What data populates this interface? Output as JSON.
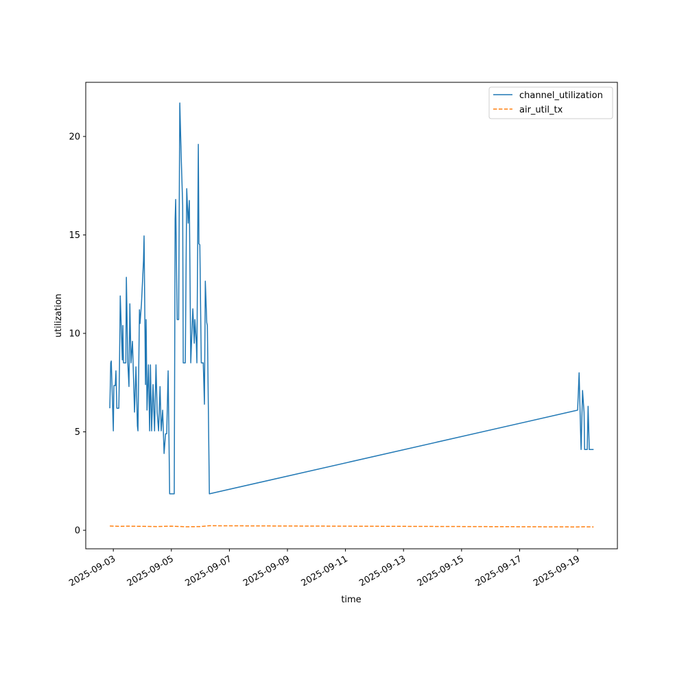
{
  "chart_data": {
    "type": "line",
    "title": "",
    "xlabel": "time",
    "ylabel": "utilization",
    "x_unit": "day of September 2025",
    "xlim": [
      2.05,
      20.37
    ],
    "ylim": [
      -0.94,
      22.75
    ],
    "xticks": [
      3,
      5,
      7,
      9,
      11,
      13,
      15,
      17,
      19
    ],
    "xtick_labels": [
      "2025-09-03",
      "2025-09-05",
      "2025-09-07",
      "2025-09-09",
      "2025-09-11",
      "2025-09-13",
      "2025-09-15",
      "2025-09-17",
      "2025-09-19"
    ],
    "yticks": [
      0,
      5,
      10,
      15,
      20
    ],
    "ytick_labels": [
      "0",
      "5",
      "10",
      "15",
      "20"
    ],
    "grid": false,
    "legend_position": "top-right",
    "series": [
      {
        "name": "channel_utilization",
        "color": "#1f77b4",
        "style": "solid",
        "points": [
          [
            2.88,
            6.2
          ],
          [
            2.91,
            8.5
          ],
          [
            2.93,
            8.6
          ],
          [
            3.0,
            5.05
          ],
          [
            3.02,
            7.35
          ],
          [
            3.07,
            7.35
          ],
          [
            3.09,
            8.1
          ],
          [
            3.12,
            6.2
          ],
          [
            3.19,
            6.2
          ],
          [
            3.21,
            8.1
          ],
          [
            3.24,
            11.9
          ],
          [
            3.31,
            8.65
          ],
          [
            3.33,
            10.4
          ],
          [
            3.35,
            8.5
          ],
          [
            3.43,
            8.5
          ],
          [
            3.45,
            12.85
          ],
          [
            3.5,
            8.5
          ],
          [
            3.54,
            7.3
          ],
          [
            3.57,
            11.5
          ],
          [
            3.61,
            8.5
          ],
          [
            3.66,
            9.6
          ],
          [
            3.73,
            6.0
          ],
          [
            3.78,
            8.3
          ],
          [
            3.83,
            5.3
          ],
          [
            3.85,
            5.05
          ],
          [
            3.9,
            11.2
          ],
          [
            3.92,
            10.5
          ],
          [
            3.97,
            11.5
          ],
          [
            4.04,
            13.7
          ],
          [
            4.06,
            14.95
          ],
          [
            4.11,
            7.4
          ],
          [
            4.13,
            10.7
          ],
          [
            4.16,
            6.1
          ],
          [
            4.21,
            8.4
          ],
          [
            4.25,
            5.05
          ],
          [
            4.28,
            8.4
          ],
          [
            4.32,
            5.05
          ],
          [
            4.37,
            7.4
          ],
          [
            4.42,
            5.05
          ],
          [
            4.47,
            8.4
          ],
          [
            4.51,
            6.0
          ],
          [
            4.56,
            5.05
          ],
          [
            4.61,
            7.3
          ],
          [
            4.65,
            5.05
          ],
          [
            4.7,
            6.1
          ],
          [
            4.75,
            3.9
          ],
          [
            4.8,
            4.9
          ],
          [
            4.84,
            4.9
          ],
          [
            4.89,
            8.1
          ],
          [
            4.94,
            1.85
          ],
          [
            5.1,
            1.85
          ],
          [
            5.13,
            15.8
          ],
          [
            5.15,
            16.8
          ],
          [
            5.2,
            10.7
          ],
          [
            5.25,
            10.7
          ],
          [
            5.29,
            21.7
          ],
          [
            5.34,
            18.9
          ],
          [
            5.39,
            16.5
          ],
          [
            5.41,
            8.5
          ],
          [
            5.48,
            8.5
          ],
          [
            5.53,
            17.35
          ],
          [
            5.58,
            15.6
          ],
          [
            5.62,
            16.75
          ],
          [
            5.67,
            8.5
          ],
          [
            5.74,
            11.25
          ],
          [
            5.77,
            10.2
          ],
          [
            5.79,
            9.5
          ],
          [
            5.81,
            10.7
          ],
          [
            5.86,
            9.5
          ],
          [
            5.88,
            8.5
          ],
          [
            5.93,
            19.6
          ],
          [
            5.95,
            14.55
          ],
          [
            5.98,
            14.5
          ],
          [
            6.03,
            8.5
          ],
          [
            6.1,
            8.5
          ],
          [
            6.14,
            6.4
          ],
          [
            6.17,
            12.65
          ],
          [
            6.22,
            10.55
          ],
          [
            6.24,
            10.4
          ],
          [
            6.31,
            1.85
          ],
          [
            19.0,
            6.1
          ],
          [
            19.05,
            8.0
          ],
          [
            19.1,
            5.05
          ],
          [
            19.12,
            4.1
          ],
          [
            19.17,
            7.1
          ],
          [
            19.22,
            6.0
          ],
          [
            19.24,
            4.1
          ],
          [
            19.33,
            4.1
          ],
          [
            19.36,
            6.3
          ],
          [
            19.4,
            4.1
          ],
          [
            19.55,
            4.1
          ]
        ]
      },
      {
        "name": "air_util_tx",
        "color": "#ff7f0e",
        "style": "dashed",
        "points": [
          [
            2.88,
            0.22
          ],
          [
            3.2,
            0.2
          ],
          [
            3.5,
            0.21
          ],
          [
            4.0,
            0.2
          ],
          [
            4.5,
            0.19
          ],
          [
            5.0,
            0.21
          ],
          [
            5.5,
            0.18
          ],
          [
            6.0,
            0.19
          ],
          [
            6.31,
            0.23
          ],
          [
            19.0,
            0.17
          ],
          [
            19.2,
            0.18
          ],
          [
            19.55,
            0.17
          ]
        ]
      }
    ]
  }
}
